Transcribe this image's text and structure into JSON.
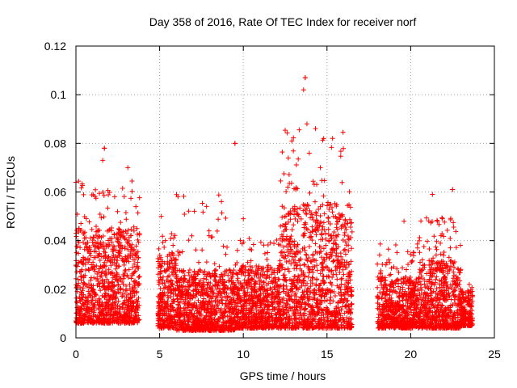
{
  "chart_data": {
    "type": "scatter",
    "title": "Day 358 of 2016, Rate Of TEC Index for receiver norf",
    "xlabel": "GPS time / hours",
    "ylabel": "ROTI / TECUs",
    "xlim": [
      0,
      25
    ],
    "ylim": [
      0,
      0.12
    ],
    "x_ticks": [
      0,
      5,
      10,
      15,
      20,
      25
    ],
    "y_ticks": [
      0,
      0.02,
      0.04,
      0.06,
      0.08,
      0.1,
      0.12
    ],
    "x_tick_labels": [
      "0",
      "5",
      "10",
      "15",
      "20",
      "25"
    ],
    "y_tick_labels": [
      "0",
      "0.02",
      "0.04",
      "0.06",
      "0.08",
      "0.1",
      "0.12"
    ],
    "grid": true,
    "legend": "none",
    "marker": "plus",
    "series_color": "#ff0000",
    "clusters": [
      {
        "x_start": 0.0,
        "x_end": 3.8,
        "y_low": 0.006,
        "y_high": 0.045,
        "peak_x": 1.7,
        "peak_y": 0.078
      },
      {
        "x_start": 4.9,
        "x_end": 6.0,
        "y_low": 0.004,
        "y_high": 0.035,
        "peak_x": 5.1,
        "peak_y": 0.05
      },
      {
        "x_start": 6.0,
        "x_end": 9.5,
        "y_low": 0.003,
        "y_high": 0.028,
        "peak_x": 9.5,
        "peak_y": 0.08
      },
      {
        "x_start": 9.5,
        "x_end": 12.2,
        "y_low": 0.004,
        "y_high": 0.03,
        "peak_x": 10.0,
        "peak_y": 0.049
      },
      {
        "x_start": 12.2,
        "x_end": 16.5,
        "y_low": 0.004,
        "y_high": 0.055,
        "peak_x": 13.7,
        "peak_y": 0.107
      },
      {
        "x_start": 18.0,
        "x_end": 20.5,
        "y_low": 0.004,
        "y_high": 0.025,
        "peak_x": 19.6,
        "peak_y": 0.048
      },
      {
        "x_start": 20.5,
        "x_end": 23.0,
        "y_low": 0.004,
        "y_high": 0.032,
        "peak_x": 22.5,
        "peak_y": 0.061
      },
      {
        "x_start": 23.0,
        "x_end": 23.7,
        "y_low": 0.005,
        "y_high": 0.02,
        "peak_x": 23.5,
        "peak_y": 0.022
      }
    ],
    "extreme_points": [
      {
        "x": 13.7,
        "y": 0.107
      },
      {
        "x": 13.6,
        "y": 0.102
      },
      {
        "x": 13.8,
        "y": 0.088
      },
      {
        "x": 14.8,
        "y": 0.082
      },
      {
        "x": 9.5,
        "y": 0.08
      },
      {
        "x": 12.9,
        "y": 0.081
      },
      {
        "x": 1.7,
        "y": 0.078
      },
      {
        "x": 1.6,
        "y": 0.073
      },
      {
        "x": 3.1,
        "y": 0.07
      },
      {
        "x": 14.6,
        "y": 0.07
      },
      {
        "x": 0.0,
        "y": 0.064
      },
      {
        "x": 22.5,
        "y": 0.061
      },
      {
        "x": 21.3,
        "y": 0.059
      }
    ]
  }
}
